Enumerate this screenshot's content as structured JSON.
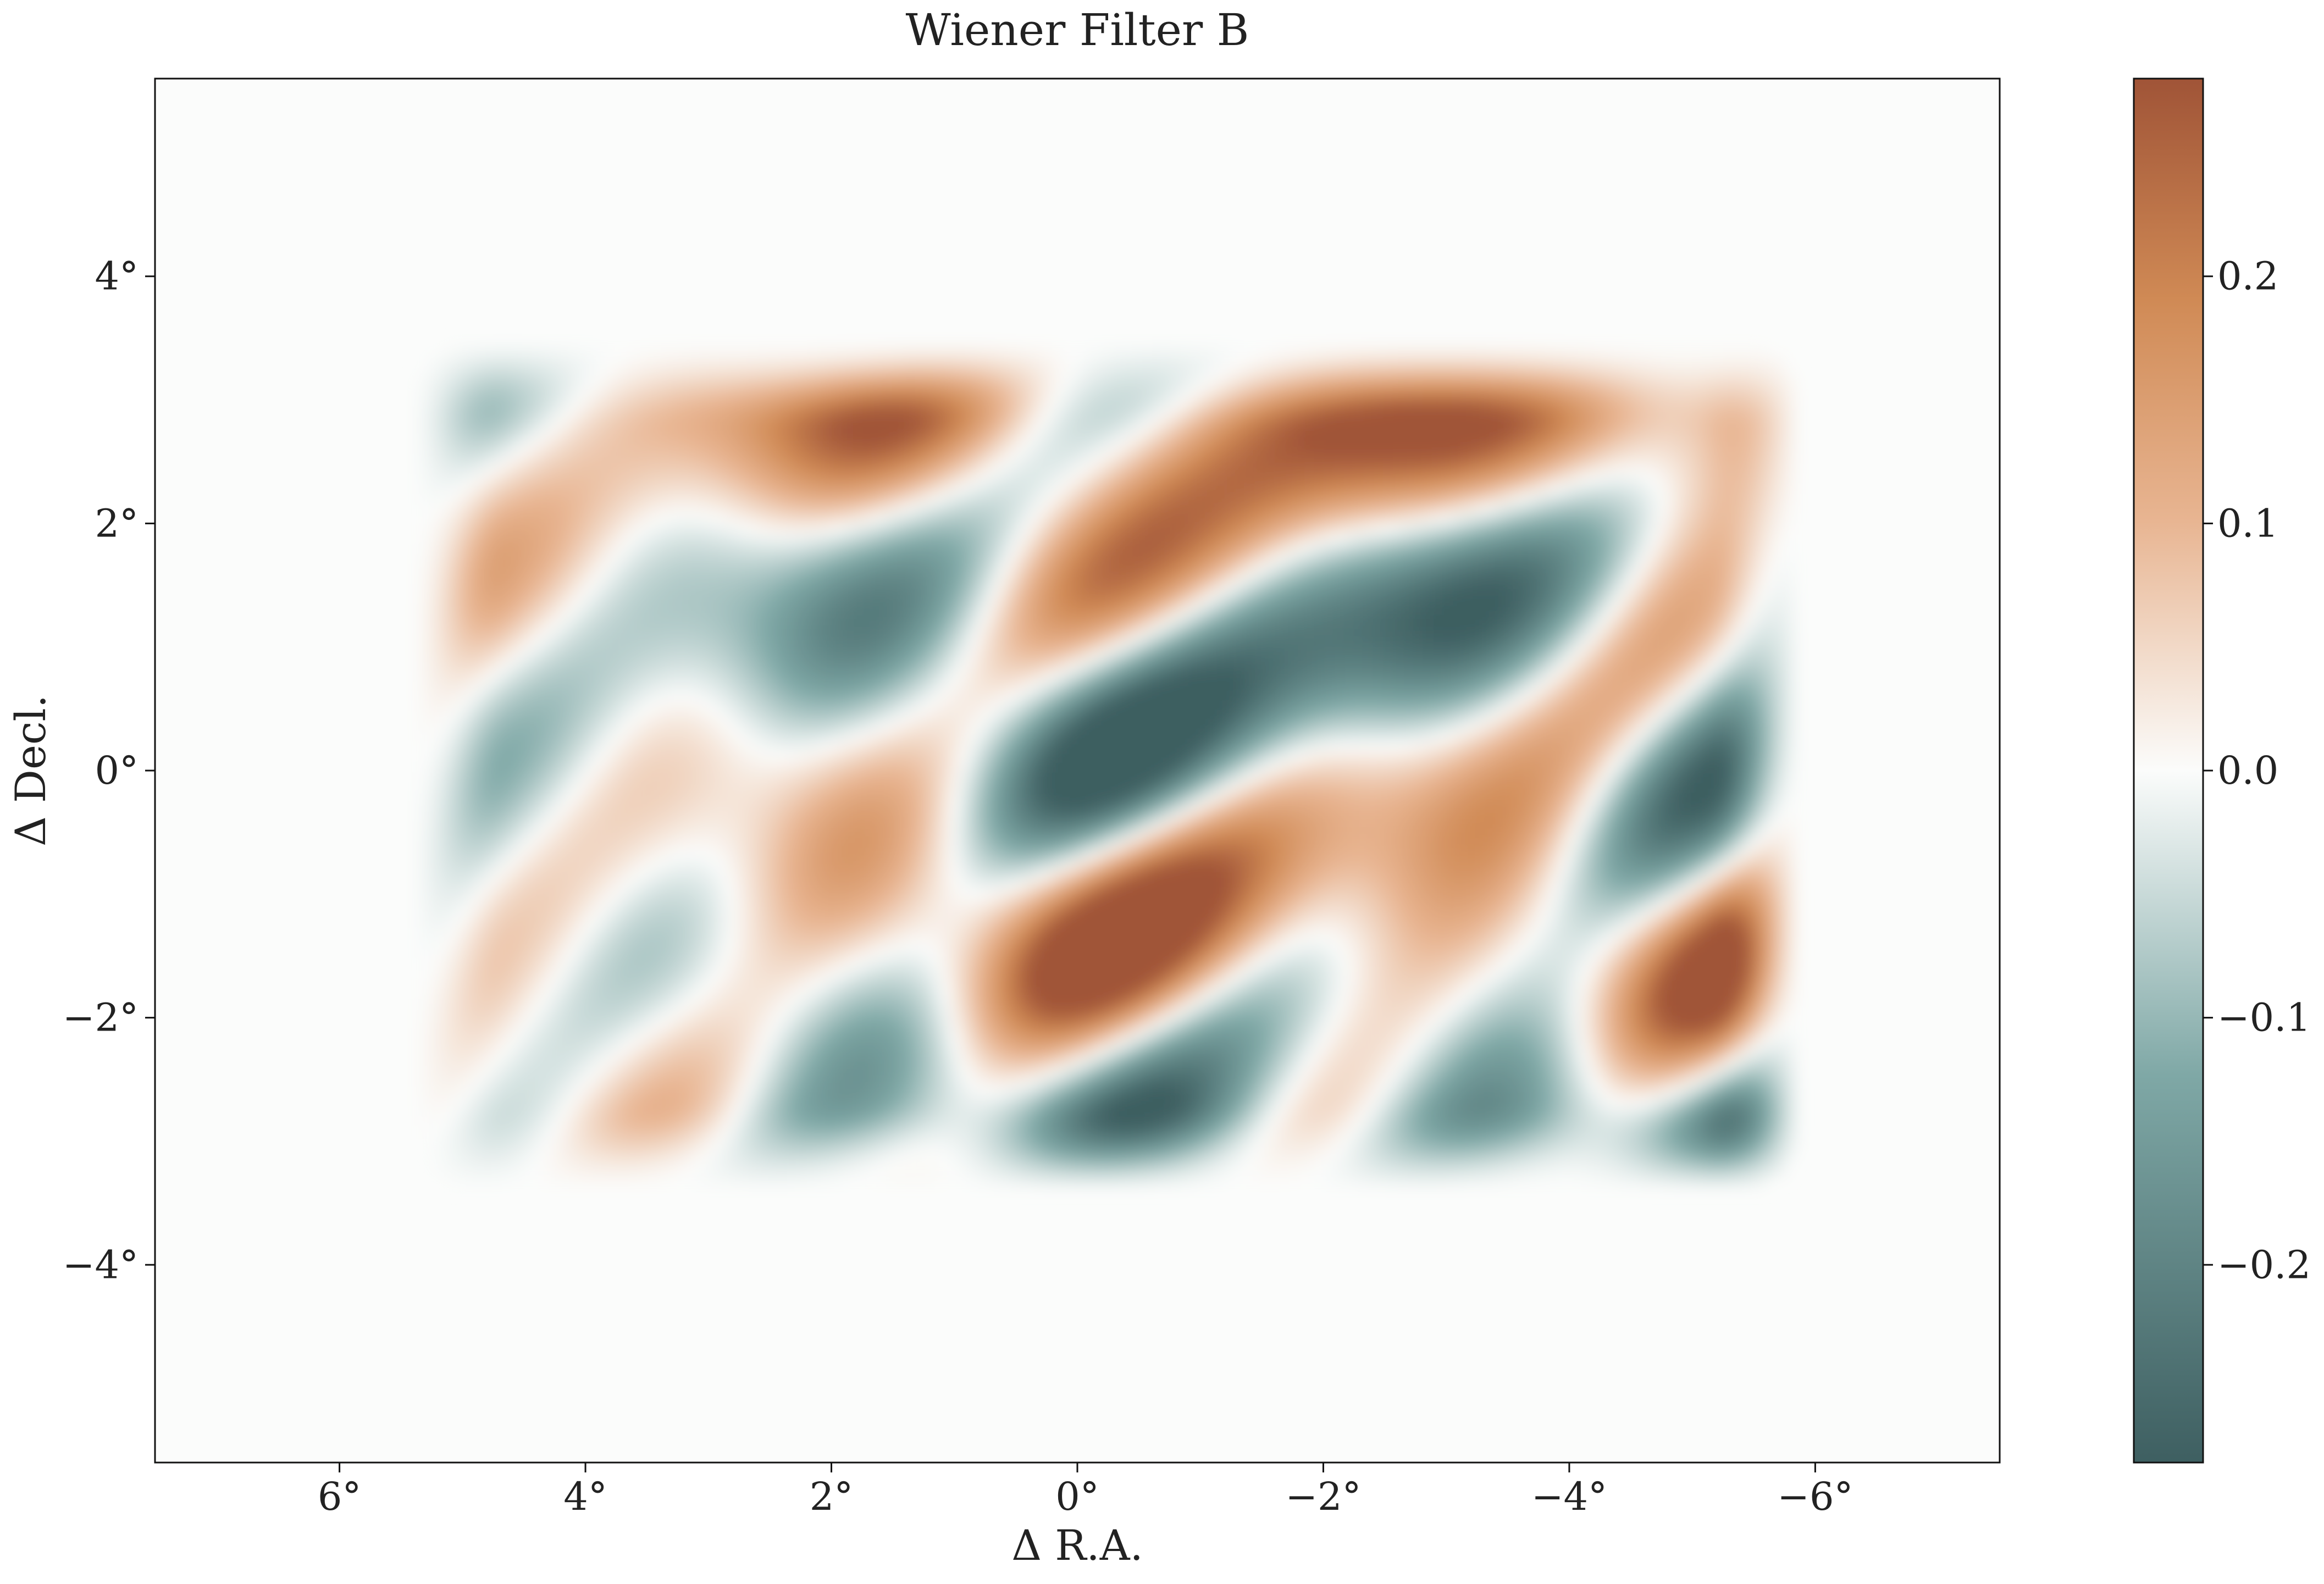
{
  "chart_data": {
    "type": "heatmap",
    "title": "Wiener Filter B",
    "xlabel": "Δ R.A.",
    "ylabel": "Δ Decl.",
    "xlim": [
      7.5,
      -7.5
    ],
    "ylim": [
      -5.6,
      5.6
    ],
    "x_ticks": [
      6,
      4,
      2,
      0,
      -2,
      -4,
      -6
    ],
    "x_tick_labels": [
      "6°",
      "4°",
      "2°",
      "0°",
      "−2°",
      "−4°",
      "−6°"
    ],
    "y_ticks": [
      4,
      2,
      0,
      -2,
      -4
    ],
    "y_tick_labels": [
      "4°",
      "2°",
      "0°",
      "−2°",
      "−4°"
    ],
    "colorbar": {
      "range": [
        -0.28,
        0.28
      ],
      "ticks": [
        0.2,
        0.1,
        0.0,
        -0.1,
        -0.2
      ],
      "tick_labels": [
        "0.2",
        "0.1",
        "0.0",
        "−0.1",
        "−0.2"
      ],
      "colors": {
        "min": "#3e5f61",
        "low": "#7fa8a6",
        "mid": "#fbfcfb",
        "high_light": "#e8b592",
        "high": "#d08a55",
        "max": "#a05437"
      }
    },
    "signal_region": {
      "x_range": [
        5.0,
        -5.4
      ],
      "y_range": [
        -3.0,
        3.0
      ]
    },
    "grid": false
  }
}
